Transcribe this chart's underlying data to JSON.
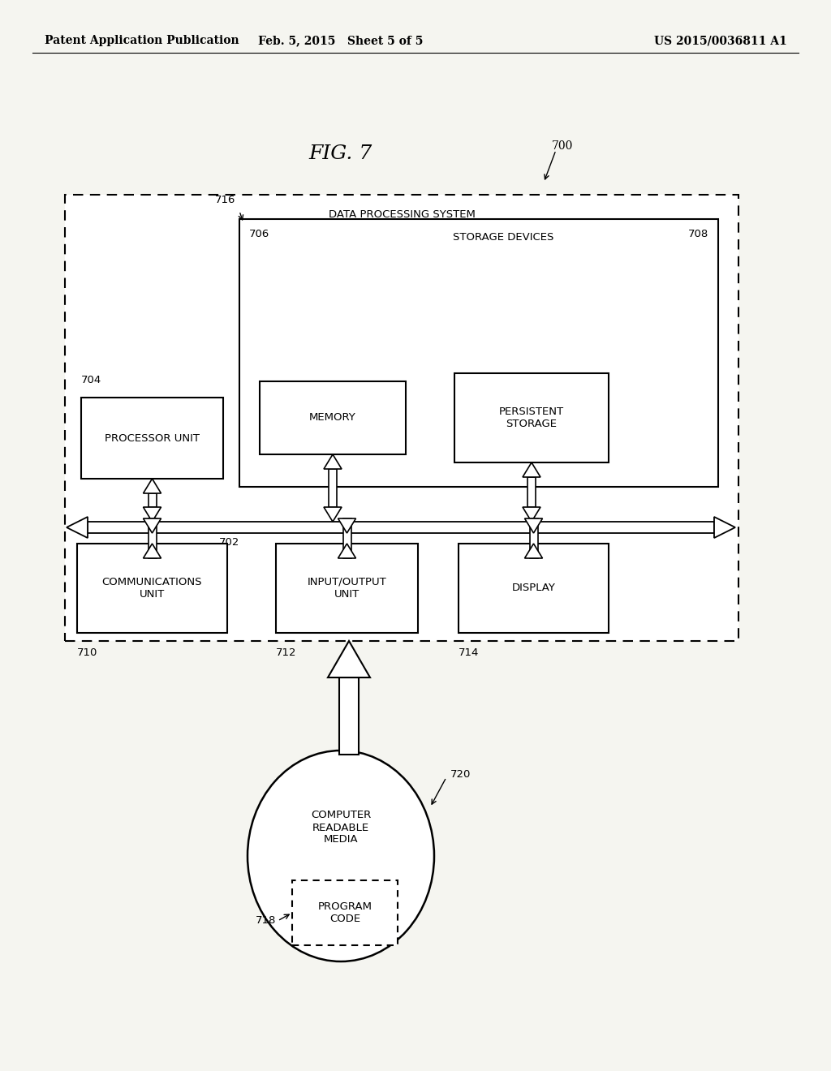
{
  "background_color": "#f5f5f0",
  "header_left": "Patent Application Publication",
  "header_mid": "Feb. 5, 2015   Sheet 5 of 5",
  "header_right": "US 2015/0036811 A1",
  "fig_label": "FIG. 7",
  "fig_number": "700",
  "outer_box_label": "DATA PROCESSING SYSTEM",
  "inner_storage_box_label": "STORAGE DEVICES",
  "ref_702": "702",
  "ref_704": "704",
  "ref_706": "706",
  "ref_708": "708",
  "ref_710": "710",
  "ref_712": "712",
  "ref_714": "714",
  "ref_716": "716",
  "ref_718": "718",
  "ref_720": "720"
}
